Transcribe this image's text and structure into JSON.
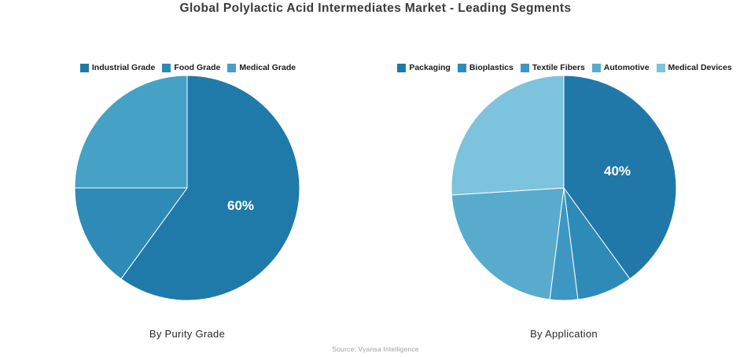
{
  "title": "Global Polylactic Acid Intermediates Market - Leading Segments",
  "source": "Source: Vyansa Intelligence",
  "chart_data": [
    {
      "type": "pie",
      "title": "By Purity Grade",
      "categories": [
        "Industrial Grade",
        "Food Grade",
        "Medical Grade"
      ],
      "values": [
        60,
        15,
        25
      ],
      "colors": [
        "#1F7AA9",
        "#2E8AB6",
        "#46A1C6"
      ],
      "slice_labels": [
        "60%",
        "",
        ""
      ],
      "start_angle_deg": 0,
      "direction": "clockwise",
      "legend_position": "top"
    },
    {
      "type": "pie",
      "title": "By Application",
      "categories": [
        "Packaging",
        "Bioplastics",
        "Textile Fibers",
        "Automotive",
        "Medical Devices"
      ],
      "values": [
        40,
        8,
        4,
        22,
        26
      ],
      "colors": [
        "#1F78A8",
        "#2E8BB8",
        "#3E97C2",
        "#58ABCD",
        "#7EC3DE"
      ],
      "slice_labels": [
        "40%",
        "",
        "",
        "",
        ""
      ],
      "start_angle_deg": 0,
      "direction": "clockwise",
      "legend_position": "top"
    }
  ]
}
